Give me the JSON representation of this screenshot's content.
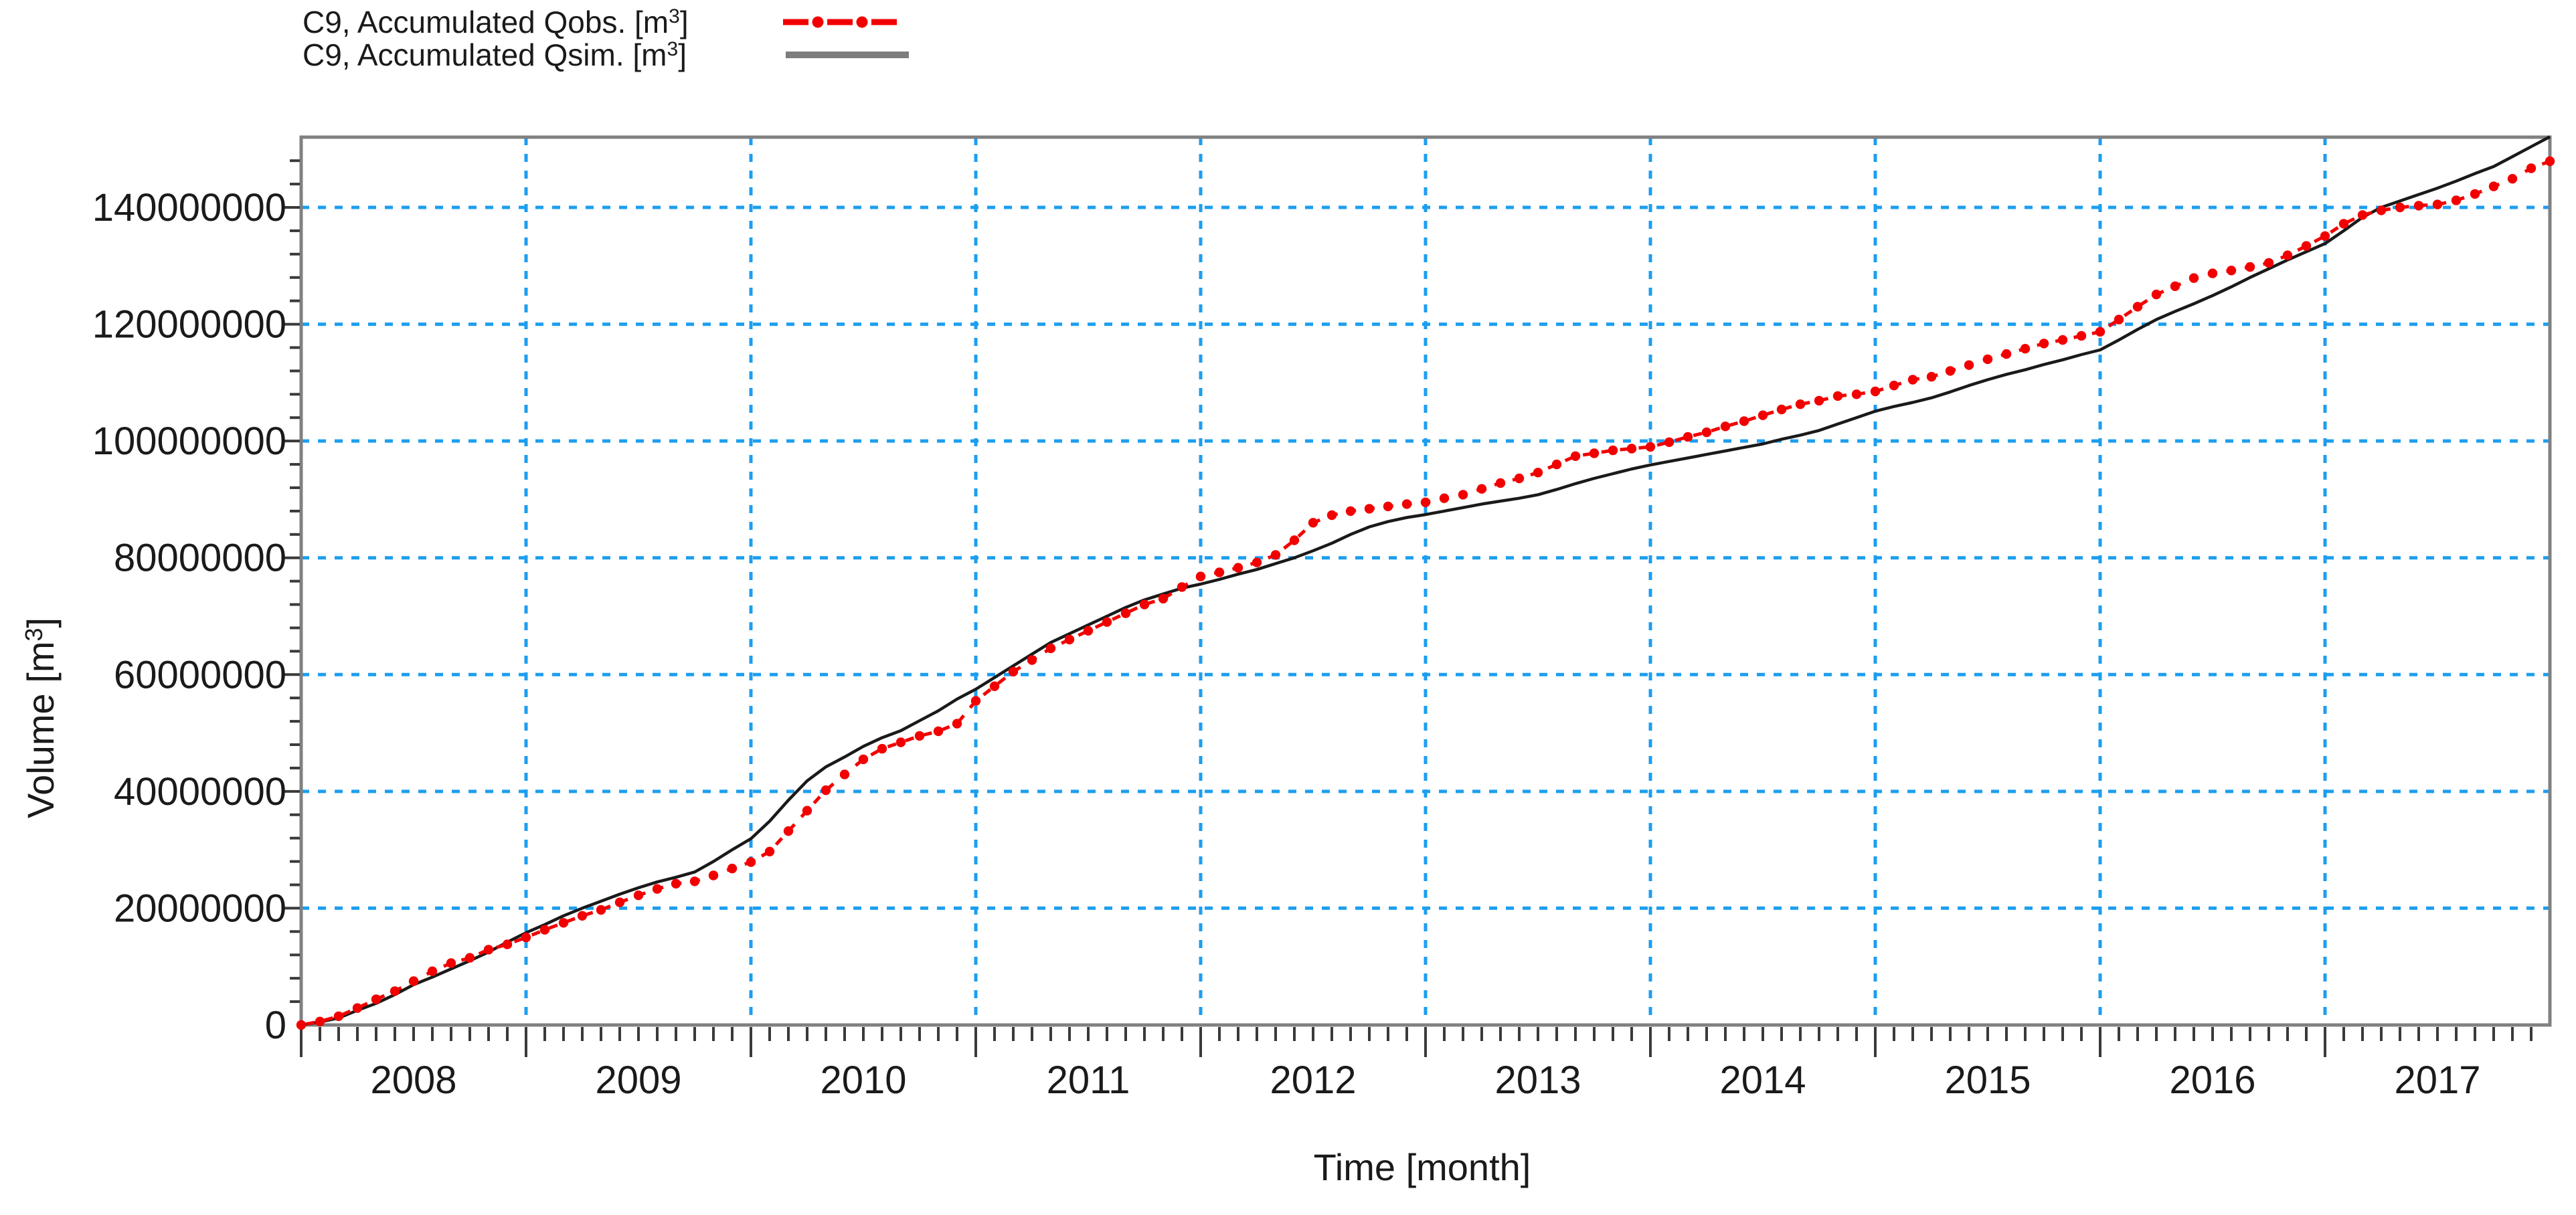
{
  "colors": {
    "qobs": "#f20000",
    "qsim": "#1a1a1a",
    "legend_qsim_sample": "#7d7d7d",
    "grid": "#1c9ef0",
    "frame": "#808080",
    "tick": "#3a3a3a",
    "text": "#1a1a1a",
    "background": "#ffffff"
  },
  "legend": {
    "items": [
      {
        "id": "qobs",
        "label": "C9, Accumulated Qobs. [m3]",
        "label_prefix": "C9, Accumulated Qobs. [m",
        "label_sup": "3",
        "label_suffix": "]",
        "marker": "red-dashed-with-dots"
      },
      {
        "id": "qsim",
        "label": "C9, Accumulated Qsim. [m3]",
        "label_prefix": "C9, Accumulated Qsim. [m",
        "label_sup": "3",
        "label_suffix": "]",
        "marker": "gray-solid-line"
      }
    ]
  },
  "axes": {
    "x": {
      "title": "Time [month]",
      "tick_labels": [
        "2008",
        "2009",
        "2010",
        "2011",
        "2012",
        "2013",
        "2014",
        "2015",
        "2016",
        "2017"
      ],
      "minor_tick_unit": "month"
    },
    "y": {
      "title": "Volume [m3]",
      "title_prefix": "Volume [m",
      "title_sup": "3",
      "title_suffix": "]",
      "tick_labels": [
        "0",
        "20000000",
        "40000000",
        "60000000",
        "80000000",
        "100000000",
        "120000000",
        "140000000"
      ],
      "minor_step_m3": 4000000
    }
  },
  "chart_data": {
    "type": "line",
    "title": "",
    "xlabel": "Time [month]",
    "ylabel": "Volume [m3]",
    "x_start": "2008-01",
    "x_end": "2018-01",
    "x_step_months": 1,
    "xlim_years": [
      2008,
      2018
    ],
    "ylim": [
      0,
      152000000
    ],
    "y_gridline_step": 20000000,
    "grid": true,
    "gridline_style": "blue-dashed",
    "legend_position": "top-left",
    "x_tick_labels": [
      "2008",
      "2009",
      "2010",
      "2011",
      "2012",
      "2013",
      "2014",
      "2015",
      "2016",
      "2017"
    ],
    "y_tick_labels": [
      "0",
      "20000000",
      "40000000",
      "60000000",
      "80000000",
      "100000000",
      "120000000",
      "140000000"
    ],
    "y_unit": "m3",
    "series": [
      {
        "name": "C9, Accumulated Qobs. [m3]",
        "style": "dashed-with-dots",
        "color": "#f20000",
        "values_Mm3": [
          0,
          0.6,
          1.5,
          2.9,
          4.4,
          5.8,
          7.5,
          9.2,
          10.6,
          11.5,
          12.9,
          13.8,
          15,
          16.3,
          17.5,
          18.7,
          19.7,
          21,
          22.2,
          23.3,
          24.2,
          24.6,
          25.6,
          26.8,
          27.9,
          29.7,
          33.2,
          36.7,
          40.2,
          42.9,
          45.5,
          47.3,
          48.4,
          49.5,
          50.3,
          51.6,
          55.5,
          58,
          60.5,
          62.5,
          64.5,
          66,
          67.5,
          69,
          70.5,
          72,
          73,
          75,
          76.8,
          77.5,
          78.3,
          79.2,
          80.5,
          83,
          86,
          87.3,
          88,
          88.4,
          88.8,
          89.2,
          89.5,
          90.2,
          90.8,
          91.8,
          92.8,
          93.6,
          94.6,
          96,
          97.4,
          97.9,
          98.4,
          98.7,
          99,
          99.8,
          100.7,
          101.5,
          102.5,
          103.4,
          104.4,
          105.4,
          106.3,
          106.9,
          107.7,
          108,
          108.5,
          109.5,
          110.5,
          111,
          112,
          113,
          114,
          114.9,
          115.8,
          116.7,
          117.3,
          118,
          118.7,
          120.8,
          123,
          125.1,
          126.5,
          127.9,
          128.7,
          129.2,
          129.8,
          130.5,
          131.8,
          133.4,
          135.1,
          137.2,
          138.7,
          139.5,
          140,
          140.3,
          140.5,
          141.2,
          142.3,
          143.6,
          144.9,
          146.7,
          147.9
        ]
      },
      {
        "name": "C9, Accumulated Qsim. [m3]",
        "style": "solid",
        "color": "#1a1a1a",
        "values_Mm3": [
          0,
          0.5,
          1.2,
          2.5,
          3.7,
          5.2,
          6.9,
          8.2,
          9.6,
          11,
          12.5,
          14.2,
          15.8,
          17.2,
          18.7,
          20,
          21.2,
          22.4,
          23.5,
          24.5,
          25.3,
          26.2,
          28,
          30,
          31.9,
          34.9,
          38.5,
          41.8,
          44.2,
          45.9,
          47.7,
          49.2,
          50.4,
          52.1,
          53.8,
          55.8,
          57.5,
          59.5,
          61.5,
          63.5,
          65.5,
          67,
          68.5,
          70,
          71.5,
          72.8,
          73.8,
          74.8,
          75.5,
          76.3,
          77.2,
          78,
          79,
          80,
          81.2,
          82.5,
          84,
          85.3,
          86.2,
          86.9,
          87.4,
          88,
          88.6,
          89.2,
          89.7,
          90.2,
          90.8,
          91.7,
          92.7,
          93.6,
          94.4,
          95.2,
          95.9,
          96.5,
          97.1,
          97.7,
          98.3,
          98.9,
          99.5,
          100.3,
          101,
          101.8,
          102.9,
          104,
          105.1,
          105.9,
          106.6,
          107.4,
          108.4,
          109.5,
          110.5,
          111.4,
          112.2,
          113.1,
          113.9,
          114.8,
          115.6,
          117.3,
          119.1,
          120.8,
          122.2,
          123.5,
          124.9,
          126.4,
          128,
          129.5,
          131,
          132.4,
          133.8,
          136,
          138.3,
          140,
          141.1,
          142.2,
          143.3,
          144.5,
          145.8,
          147,
          148.7,
          150.4,
          152.1
        ]
      }
    ]
  }
}
